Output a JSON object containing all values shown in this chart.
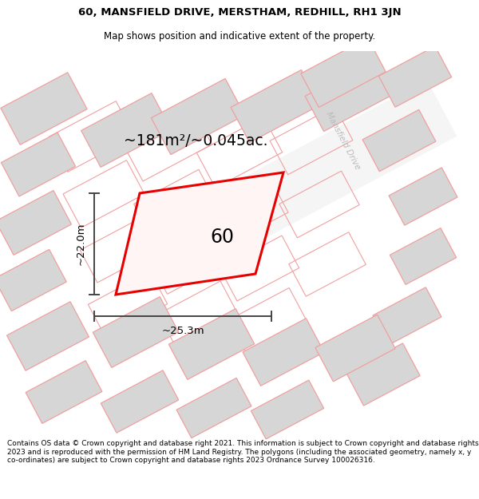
{
  "title_line1": "60, MANSFIELD DRIVE, MERSTHAM, REDHILL, RH1 3JN",
  "title_line2": "Map shows position and indicative extent of the property.",
  "footer_text": "Contains OS data © Crown copyright and database right 2021. This information is subject to Crown copyright and database rights 2023 and is reproduced with the permission of HM Land Registry. The polygons (including the associated geometry, namely x, y co-ordinates) are subject to Crown copyright and database rights 2023 Ordnance Survey 100026316.",
  "area_label": "~181m²/~0.045ac.",
  "width_label": "~25.3m",
  "height_label": "~22.0m",
  "plot_number": "60",
  "bg_color": "#efefef",
  "building_fill": "#d6d6d6",
  "pink_color": "#f0a0a0",
  "red_color": "#e80000",
  "street_label": "Mansfield Drive",
  "street_label_color": "#bbbbbb"
}
